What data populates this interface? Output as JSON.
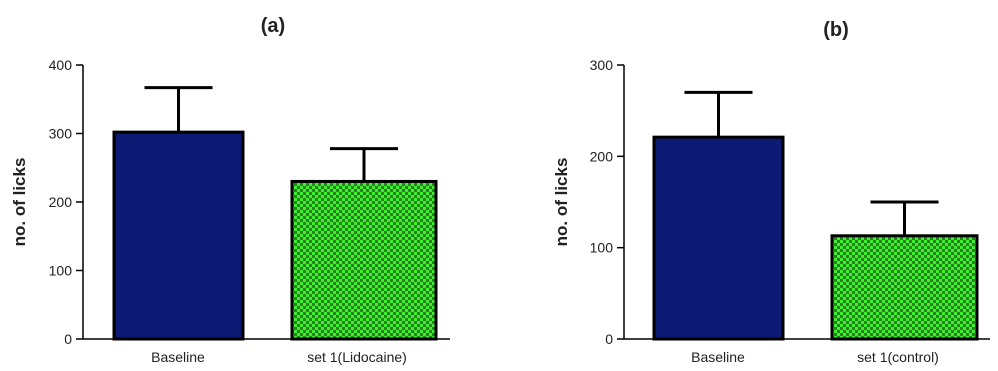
{
  "chart_data": [
    {
      "type": "bar",
      "title": "(a)",
      "xlabel": "",
      "ylabel": "no. of licks",
      "categories": [
        "Baseline",
        "set 1(Lidocaine)"
      ],
      "values": [
        302,
        230
      ],
      "error": [
        65,
        48
      ],
      "ylim": [
        0,
        400
      ],
      "yticks": [
        0,
        100,
        200,
        300,
        400
      ],
      "grid": false,
      "legend": "none",
      "bar_styles": [
        {
          "fill": "#0d1a73",
          "pattern": "solid"
        },
        {
          "fill": "#39e62e",
          "pattern": "checkered"
        }
      ]
    },
    {
      "type": "bar",
      "title": "(b)",
      "xlabel": "",
      "ylabel": "no. of licks",
      "categories": [
        "Baseline",
        "set 1(control)"
      ],
      "values": [
        221,
        113
      ],
      "error": [
        49,
        37
      ],
      "ylim": [
        0,
        300
      ],
      "yticks": [
        0,
        100,
        200,
        300
      ],
      "grid": false,
      "legend": "none",
      "bar_styles": [
        {
          "fill": "#0d1a73",
          "pattern": "solid"
        },
        {
          "fill": "#39e62e",
          "pattern": "checkered"
        }
      ]
    }
  ]
}
